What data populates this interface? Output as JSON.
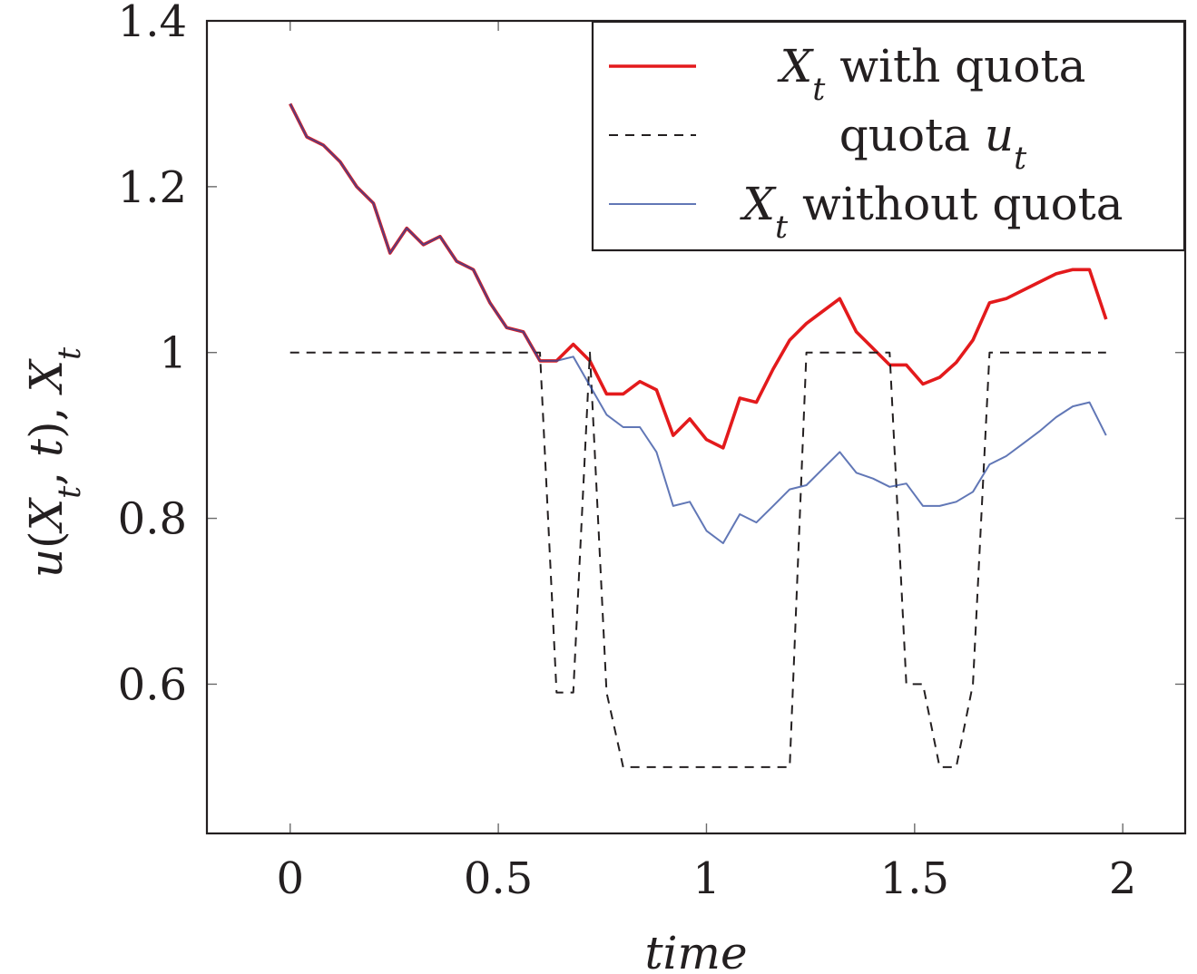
{
  "chart_data": {
    "type": "line",
    "xlabel": "time",
    "ylabel": {
      "parts": [
        {
          "text": "u",
          "italic": true
        },
        {
          "text": "(",
          "italic": false
        },
        {
          "text": "X",
          "italic": true
        },
        {
          "text": "t",
          "italic": true,
          "sub": true
        },
        {
          "text": ", ",
          "italic": false
        },
        {
          "text": "t",
          "italic": true
        },
        {
          "text": "),    ",
          "italic": false
        },
        {
          "text": "X",
          "italic": true
        },
        {
          "text": "t",
          "italic": true,
          "sub": true
        }
      ]
    },
    "xlim": [
      -0.2,
      2.15
    ],
    "ylim": [
      0.42,
      1.4
    ],
    "xticks": [
      0,
      0.5,
      1,
      1.5,
      2
    ],
    "xtick_labels": [
      "0",
      "0.5",
      "1",
      "1.5",
      "2"
    ],
    "yticks": [
      0.6,
      0.8,
      1.0,
      1.2,
      1.4
    ],
    "ytick_labels": [
      "0.6",
      "0.8",
      "1",
      "1.2",
      "1.4"
    ],
    "legend_position": "top-right",
    "grid": false,
    "series": [
      {
        "key": "with_quota",
        "color": "#e31a1c",
        "dash": "solid",
        "legend": [
          {
            "text": "X",
            "italic": true
          },
          {
            "text": "t",
            "italic": true,
            "sub": true
          },
          {
            "text": " with quota",
            "italic": false
          }
        ],
        "x": [
          0,
          0.04,
          0.08,
          0.12,
          0.16,
          0.2,
          0.24,
          0.28,
          0.32,
          0.36,
          0.4,
          0.44,
          0.48,
          0.52,
          0.56,
          0.6,
          0.64,
          0.68,
          0.72,
          0.76,
          0.8,
          0.84,
          0.88,
          0.92,
          0.96,
          1.0,
          1.04,
          1.08,
          1.12,
          1.16,
          1.2,
          1.24,
          1.28,
          1.32,
          1.36,
          1.4,
          1.44,
          1.48,
          1.52,
          1.56,
          1.6,
          1.64,
          1.68,
          1.72,
          1.76,
          1.8,
          1.84,
          1.88,
          1.92,
          1.96
        ],
        "y": [
          1.3,
          1.26,
          1.25,
          1.23,
          1.2,
          1.18,
          1.12,
          1.15,
          1.13,
          1.14,
          1.11,
          1.1,
          1.06,
          1.03,
          1.025,
          0.99,
          0.99,
          1.01,
          0.99,
          0.95,
          0.95,
          0.965,
          0.955,
          0.9,
          0.92,
          0.895,
          0.885,
          0.945,
          0.94,
          0.98,
          1.015,
          1.035,
          1.05,
          1.065,
          1.025,
          1.005,
          0.985,
          0.985,
          0.962,
          0.97,
          0.988,
          1.015,
          1.06,
          1.065,
          1.075,
          1.085,
          1.095,
          1.1,
          1.1,
          1.04
        ]
      },
      {
        "key": "quota",
        "color": "#231f20",
        "dash": "dashed",
        "legend": [
          {
            "text": "quota ",
            "italic": false
          },
          {
            "text": "u",
            "italic": true
          },
          {
            "text": "t",
            "italic": true,
            "sub": true
          }
        ],
        "x": [
          0,
          0.04,
          0.08,
          0.12,
          0.16,
          0.2,
          0.24,
          0.28,
          0.32,
          0.36,
          0.4,
          0.44,
          0.48,
          0.52,
          0.56,
          0.6,
          0.64,
          0.68,
          0.72,
          0.76,
          0.8,
          0.84,
          0.88,
          0.92,
          0.96,
          1.0,
          1.04,
          1.08,
          1.12,
          1.16,
          1.2,
          1.24,
          1.28,
          1.32,
          1.36,
          1.4,
          1.44,
          1.48,
          1.52,
          1.56,
          1.6,
          1.64,
          1.68,
          1.72,
          1.76,
          1.8,
          1.84,
          1.88,
          1.92,
          1.96
        ],
        "y": [
          1,
          1,
          1,
          1,
          1,
          1,
          1,
          1,
          1,
          1,
          1,
          1,
          1,
          1,
          1,
          1,
          0.59,
          0.59,
          1,
          0.59,
          0.5,
          0.5,
          0.5,
          0.5,
          0.5,
          0.5,
          0.5,
          0.5,
          0.5,
          0.5,
          0.5,
          1,
          1,
          1,
          1,
          1,
          1,
          0.6,
          0.6,
          0.5,
          0.5,
          0.6,
          1,
          1,
          1,
          1,
          1,
          1,
          1,
          1
        ]
      },
      {
        "key": "without_quota",
        "color": "#2c4a9e",
        "dash": "solid",
        "legend": [
          {
            "text": "X",
            "italic": true
          },
          {
            "text": "t",
            "italic": true,
            "sub": true
          },
          {
            "text": " without quota",
            "italic": false
          }
        ],
        "x": [
          0,
          0.04,
          0.08,
          0.12,
          0.16,
          0.2,
          0.24,
          0.28,
          0.32,
          0.36,
          0.4,
          0.44,
          0.48,
          0.52,
          0.56,
          0.6,
          0.64,
          0.68,
          0.72,
          0.76,
          0.8,
          0.84,
          0.88,
          0.92,
          0.96,
          1.0,
          1.04,
          1.08,
          1.12,
          1.16,
          1.2,
          1.24,
          1.28,
          1.32,
          1.36,
          1.4,
          1.44,
          1.48,
          1.52,
          1.56,
          1.6,
          1.64,
          1.68,
          1.72,
          1.76,
          1.8,
          1.84,
          1.88,
          1.92,
          1.96
        ],
        "y": [
          1.3,
          1.26,
          1.25,
          1.23,
          1.2,
          1.18,
          1.12,
          1.15,
          1.13,
          1.14,
          1.11,
          1.1,
          1.06,
          1.03,
          1.025,
          0.99,
          0.99,
          0.995,
          0.96,
          0.925,
          0.91,
          0.91,
          0.88,
          0.815,
          0.82,
          0.785,
          0.77,
          0.805,
          0.795,
          0.815,
          0.835,
          0.84,
          0.86,
          0.88,
          0.855,
          0.848,
          0.838,
          0.842,
          0.815,
          0.815,
          0.82,
          0.832,
          0.865,
          0.875,
          0.89,
          0.905,
          0.922,
          0.935,
          0.94,
          0.9
        ]
      }
    ]
  }
}
